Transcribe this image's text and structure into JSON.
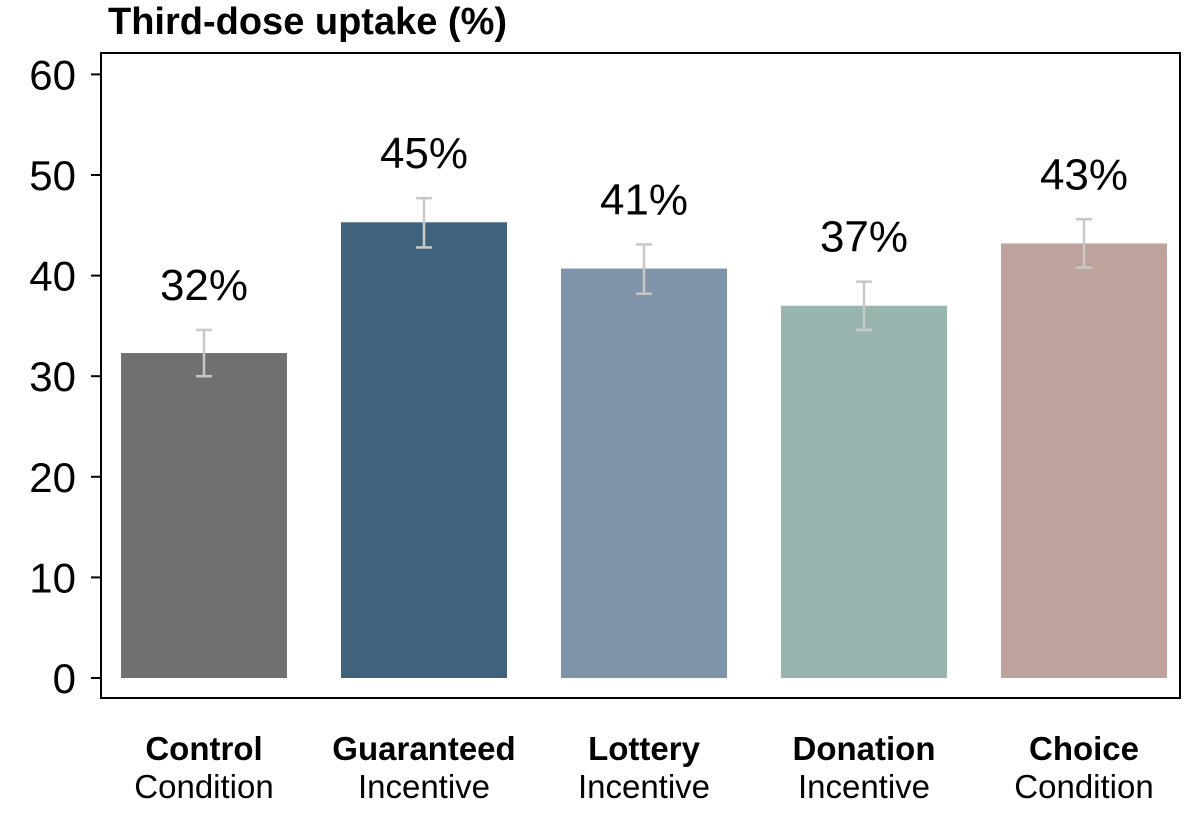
{
  "chart_data": {
    "type": "bar",
    "title": "Third-dose uptake (%)",
    "xlabel": "",
    "ylabel": "",
    "ylim": [
      0,
      60
    ],
    "yticks": [
      0,
      10,
      20,
      30,
      40,
      50,
      60
    ],
    "grid": false,
    "categories": [
      {
        "line1": "Control",
        "line2": "Condition"
      },
      {
        "line1": "Guaranteed",
        "line2": "Incentive"
      },
      {
        "line1": "Lottery",
        "line2": "Incentive"
      },
      {
        "line1": "Donation",
        "line2": "Incentive"
      },
      {
        "line1": "Choice",
        "line2": "Condition"
      }
    ],
    "values": [
      32.3,
      45.3,
      40.7,
      37.0,
      43.2
    ],
    "error_low": [
      30.0,
      42.8,
      38.2,
      34.6,
      40.8
    ],
    "error_high": [
      34.6,
      47.7,
      43.1,
      39.4,
      45.6
    ],
    "data_labels": [
      "32%",
      "45%",
      "41%",
      "37%",
      "43%"
    ],
    "colors": [
      "#707070",
      "#40637d",
      "#7f94ab",
      "#97b5ae",
      "#bfa29b"
    ],
    "error_color": "#c8c8c8"
  }
}
